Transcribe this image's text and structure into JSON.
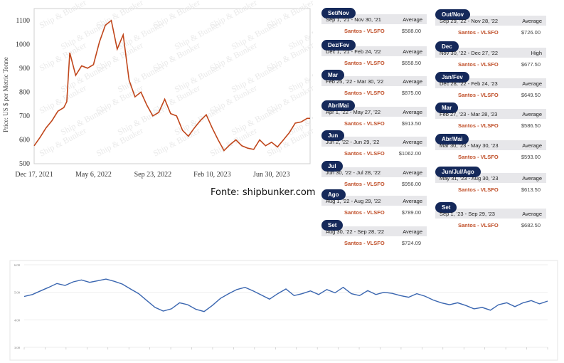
{
  "chart_data": [
    {
      "type": "line",
      "watermark": "Ship & Bunker",
      "ylabel": "Price: US $ per Metric Tonne",
      "ylim": [
        500,
        1150
      ],
      "yticks": [
        500,
        600,
        700,
        800,
        900,
        1000,
        1100
      ],
      "xtick_labels": [
        "Dec 17, 2021",
        "May 6, 2022",
        "Sep 23, 2022",
        "Feb 10, 2023",
        "Jun 30, 2023"
      ],
      "xlim": [
        "2021-12-17",
        "2023-09-29"
      ],
      "series_color": "#c0461b",
      "x": [
        "2021-12-17",
        "2021-12-31",
        "2022-01-14",
        "2022-01-28",
        "2022-02-11",
        "2022-02-25",
        "2022-03-04",
        "2022-03-11",
        "2022-03-25",
        "2022-04-08",
        "2022-04-22",
        "2022-05-06",
        "2022-05-20",
        "2022-06-03",
        "2022-06-17",
        "2022-07-01",
        "2022-07-15",
        "2022-07-29",
        "2022-08-12",
        "2022-08-26",
        "2022-09-09",
        "2022-09-23",
        "2022-10-07",
        "2022-10-21",
        "2022-11-04",
        "2022-11-18",
        "2022-12-02",
        "2022-12-16",
        "2022-12-30",
        "2023-01-13",
        "2023-01-27",
        "2023-02-10",
        "2023-02-24",
        "2023-03-10",
        "2023-03-24",
        "2023-04-07",
        "2023-04-21",
        "2023-05-05",
        "2023-05-19",
        "2023-06-02",
        "2023-06-16",
        "2023-06-30",
        "2023-07-14",
        "2023-07-28",
        "2023-08-11",
        "2023-08-25",
        "2023-09-08",
        "2023-09-22",
        "2023-09-29"
      ],
      "values": [
        575,
        610,
        650,
        680,
        720,
        735,
        760,
        965,
        870,
        910,
        900,
        915,
        1010,
        1080,
        1100,
        980,
        1040,
        850,
        780,
        800,
        745,
        700,
        715,
        770,
        710,
        700,
        640,
        615,
        650,
        680,
        705,
        650,
        600,
        555,
        580,
        600,
        575,
        565,
        560,
        600,
        575,
        590,
        570,
        600,
        630,
        670,
        675,
        690,
        690
      ]
    },
    {
      "type": "line",
      "yticks": [
        "3.00",
        "4.00",
        "5.00",
        "6.00"
      ],
      "ylim": [
        3,
        6
      ],
      "series_color": "#3a66b0",
      "values": [
        4.85,
        4.92,
        5.05,
        5.18,
        5.32,
        5.25,
        5.38,
        5.45,
        5.36,
        5.42,
        5.48,
        5.4,
        5.3,
        5.12,
        4.95,
        4.7,
        4.45,
        4.32,
        4.4,
        4.62,
        4.55,
        4.38,
        4.3,
        4.52,
        4.78,
        4.95,
        5.1,
        5.18,
        5.05,
        4.9,
        4.75,
        4.95,
        5.12,
        4.88,
        4.95,
        5.05,
        4.92,
        5.1,
        4.98,
        5.18,
        4.95,
        4.88,
        5.06,
        4.92,
        5.0,
        4.96,
        4.88,
        4.82,
        4.95,
        4.86,
        4.72,
        4.62,
        4.55,
        4.62,
        4.52,
        4.4,
        4.45,
        4.35,
        4.55,
        4.62,
        4.48,
        4.62,
        4.7,
        4.58,
        4.68
      ]
    }
  ],
  "source_text": "Fonte: shipbunker.com",
  "cards": [
    {
      "tag": "Set/Nov",
      "range": "Sep 1, '21 - Nov 30, '21",
      "kind": "Average",
      "port": "Santos - VLSFO",
      "price": "$588.00"
    },
    {
      "tag": "Dez/Fev",
      "range": "Dec 1, '21 - Feb 24, '22",
      "kind": "Average",
      "port": "Santos - VLSFO",
      "price": "$658.50"
    },
    {
      "tag": "Mar",
      "range": "Feb 25, '22 - Mar 30, '22",
      "kind": "Average",
      "port": "Santos - VLSFO",
      "price": "$875.00"
    },
    {
      "tag": "Abr/Mai",
      "range": "Apr 1, '22 - May 27, '22",
      "kind": "Average",
      "port": "Santos - VLSFO",
      "price": "$913.50"
    },
    {
      "tag": "Jun",
      "range": "Jun 2, '22 - Jun 29, '22",
      "kind": "Average",
      "port": "Santos - VLSFO",
      "price": "$1062.00"
    },
    {
      "tag": "Jul",
      "range": "Jun 30, '22 - Jul 28, '22",
      "kind": "Average",
      "port": "Santos - VLSFO",
      "price": "$956.00"
    },
    {
      "tag": "Ago",
      "range": "Aug 1, '22 - Aug 29, '22",
      "kind": "Average",
      "port": "Santos - VLSFO",
      "price": "$789.00"
    },
    {
      "tag": "Set",
      "range": "Aug 30, '22 - Sep 28, '22",
      "kind": "Average",
      "port": "Santos - VLSFO",
      "price": "$724.09"
    },
    {
      "tag": "Out/Nov",
      "range": "Sep 29, '22 - Nov 28, '22",
      "kind": "Average",
      "port": "Santos - VLSFO",
      "price": "$726.00"
    },
    {
      "tag": "Dec",
      "range": "Nov 30, '22 - Dec 27, '22",
      "kind": "High",
      "port": "Santos - VLSFO",
      "price": "$677.50"
    },
    {
      "tag": "Jan/Fev",
      "range": "Dec 28, '22 - Feb 24, '23",
      "kind": "Average",
      "port": "Santos - VLSFO",
      "price": "$649.50"
    },
    {
      "tag": "Mar",
      "range": "Feb 27, '23 - Mar 28, '23",
      "kind": "Average",
      "port": "Santos - VLSFO",
      "price": "$586.50"
    },
    {
      "tag": "Abr/Mai",
      "range": "Mar 30, '23 - May 30, '23",
      "kind": "Average",
      "port": "Santos - VLSFO",
      "price": "$593.00"
    },
    {
      "tag": "Jun/Jul/Ago",
      "range": "May 31, '23 - Aug 30, '23",
      "kind": "Average",
      "port": "Santos - VLSFO",
      "price": "$613.50"
    },
    {
      "tag": "Set",
      "range": "Sep 1, '23 - Sep 29, '23",
      "kind": "Average",
      "port": "Santos - VLSFO",
      "price": "$682.50"
    }
  ]
}
